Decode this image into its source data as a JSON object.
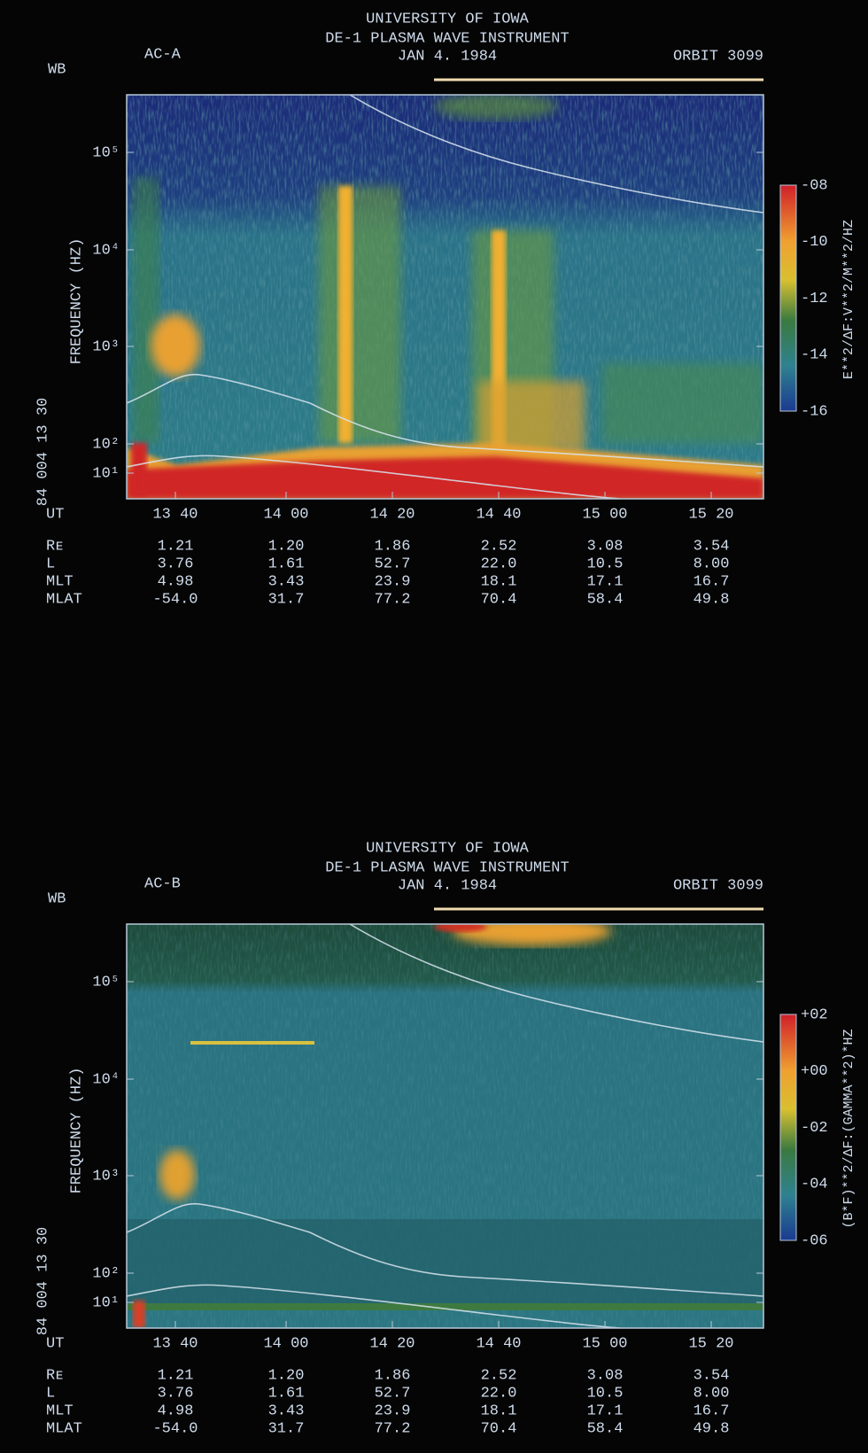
{
  "panels": [
    {
      "header": {
        "institution": "UNIVERSITY OF IOWA",
        "instrument": "DE-1 PLASMA WAVE INSTRUMENT",
        "date": "JAN 4. 1984",
        "orbit": "ORBIT 3099",
        "antenna": "AC-A",
        "mode": "WB"
      },
      "y_axis_label": "FREQUENCY (HZ)",
      "start_label": "84 004 13 30",
      "y_ticks": [
        "10⁵",
        "10⁴",
        "10³",
        "10²",
        "10¹"
      ],
      "x_axis_label": "UT",
      "x_ticks": [
        "13 40",
        "14 00",
        "14 20",
        "14 40",
        "15 00",
        "15 20"
      ],
      "colorbar": {
        "ticks": [
          "-08",
          "-10",
          "-12",
          "-14",
          "-16"
        ],
        "label": "E**2/ΔF:V**2/M**2/HZ"
      },
      "ephemeris": {
        "row_labels": [
          "Rᴇ",
          "L",
          "MLT",
          "MLAT"
        ],
        "rows": [
          [
            "1.21",
            "1.20",
            "1.86",
            "2.52",
            "3.08",
            "3.54"
          ],
          [
            "3.76",
            "1.61",
            "52.7",
            "22.0",
            "10.5",
            "8.00"
          ],
          [
            "4.98",
            "3.43",
            "23.9",
            "18.1",
            "17.1",
            "16.7"
          ],
          [
            "-54.0",
            "31.7",
            "77.2",
            "70.4",
            "58.4",
            "49.8"
          ]
        ]
      }
    },
    {
      "header": {
        "institution": "UNIVERSITY OF IOWA",
        "instrument": "DE-1 PLASMA WAVE INSTRUMENT",
        "date": "JAN 4. 1984",
        "orbit": "ORBIT 3099",
        "antenna": "AC-B",
        "mode": "WB"
      },
      "y_axis_label": "FREQUENCY (HZ)",
      "start_label": "84 004 13 30",
      "y_ticks": [
        "10⁵",
        "10⁴",
        "10³",
        "10²",
        "10¹"
      ],
      "x_axis_label": "UT",
      "x_ticks": [
        "13 40",
        "14 00",
        "14 20",
        "14 40",
        "15 00",
        "15 20"
      ],
      "colorbar": {
        "ticks": [
          "+02",
          "+00",
          "-02",
          "-04",
          "-06"
        ],
        "label": "(B*F)**2/ΔF:(GAMMA**2)*HZ"
      },
      "ephemeris": {
        "row_labels": [
          "Rᴇ",
          "L",
          "MLT",
          "MLAT"
        ],
        "rows": [
          [
            "1.21",
            "1.20",
            "1.86",
            "2.52",
            "3.08",
            "3.54"
          ],
          [
            "3.76",
            "1.61",
            "52.7",
            "22.0",
            "10.5",
            "8.00"
          ],
          [
            "4.98",
            "3.43",
            "23.9",
            "18.1",
            "17.1",
            "16.7"
          ],
          [
            "-54.0",
            "31.7",
            "77.2",
            "70.4",
            "58.4",
            "49.8"
          ]
        ]
      }
    }
  ]
}
